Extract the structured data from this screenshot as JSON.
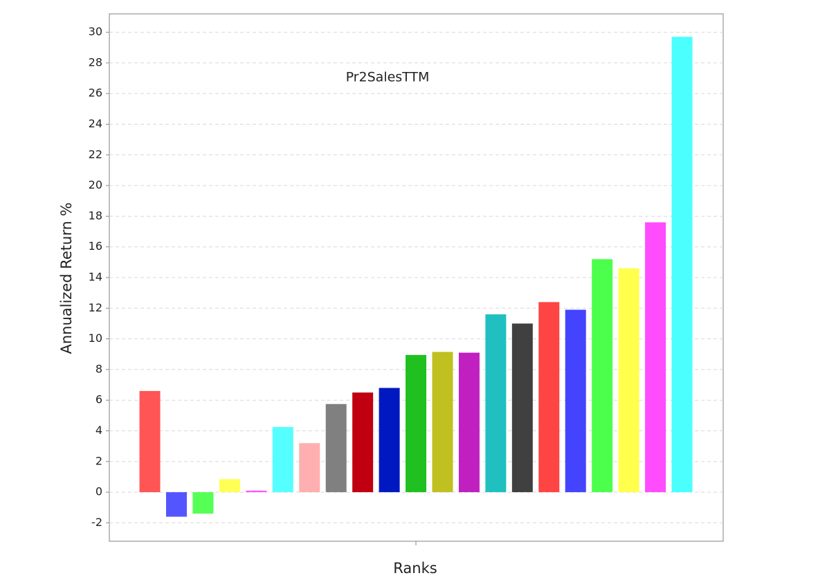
{
  "chart_data": {
    "type": "bar",
    "title": "Pr2SalesTTM",
    "x_label": "Ranks",
    "y_label": "Annualized Return %",
    "categories": [
      null,
      null,
      null,
      null,
      null,
      null,
      null,
      null,
      null,
      null,
      null,
      null,
      null,
      null,
      null,
      null,
      null,
      null,
      null,
      null,
      null
    ],
    "values": [
      6.6,
      -1.6,
      -1.4,
      0.85,
      0.1,
      4.25,
      3.2,
      5.75,
      6.5,
      6.8,
      8.95,
      9.15,
      9.1,
      11.6,
      11.0,
      12.4,
      11.9,
      15.2,
      14.6,
      17.6,
      29.7
    ],
    "colors": [
      "#ff5555",
      "#5555ff",
      "#55ff55",
      "#ffff55",
      "#ff55ff",
      "#55ffff",
      "#ffafaf",
      "#808080",
      "#c00010",
      "#0018c0",
      "#20c020",
      "#c0c020",
      "#c020c0",
      "#20c0c0",
      "#404040",
      "#ff4444",
      "#4444ff",
      "#4cff4c",
      "#ffff4c",
      "#ff4cff",
      "#4cffff"
    ],
    "ylim": [
      -3.2,
      31.2
    ],
    "yticks": [
      -2,
      0,
      2,
      4,
      6,
      8,
      10,
      12,
      14,
      16,
      18,
      20,
      22,
      24,
      26,
      28,
      30
    ],
    "grid": true
  }
}
